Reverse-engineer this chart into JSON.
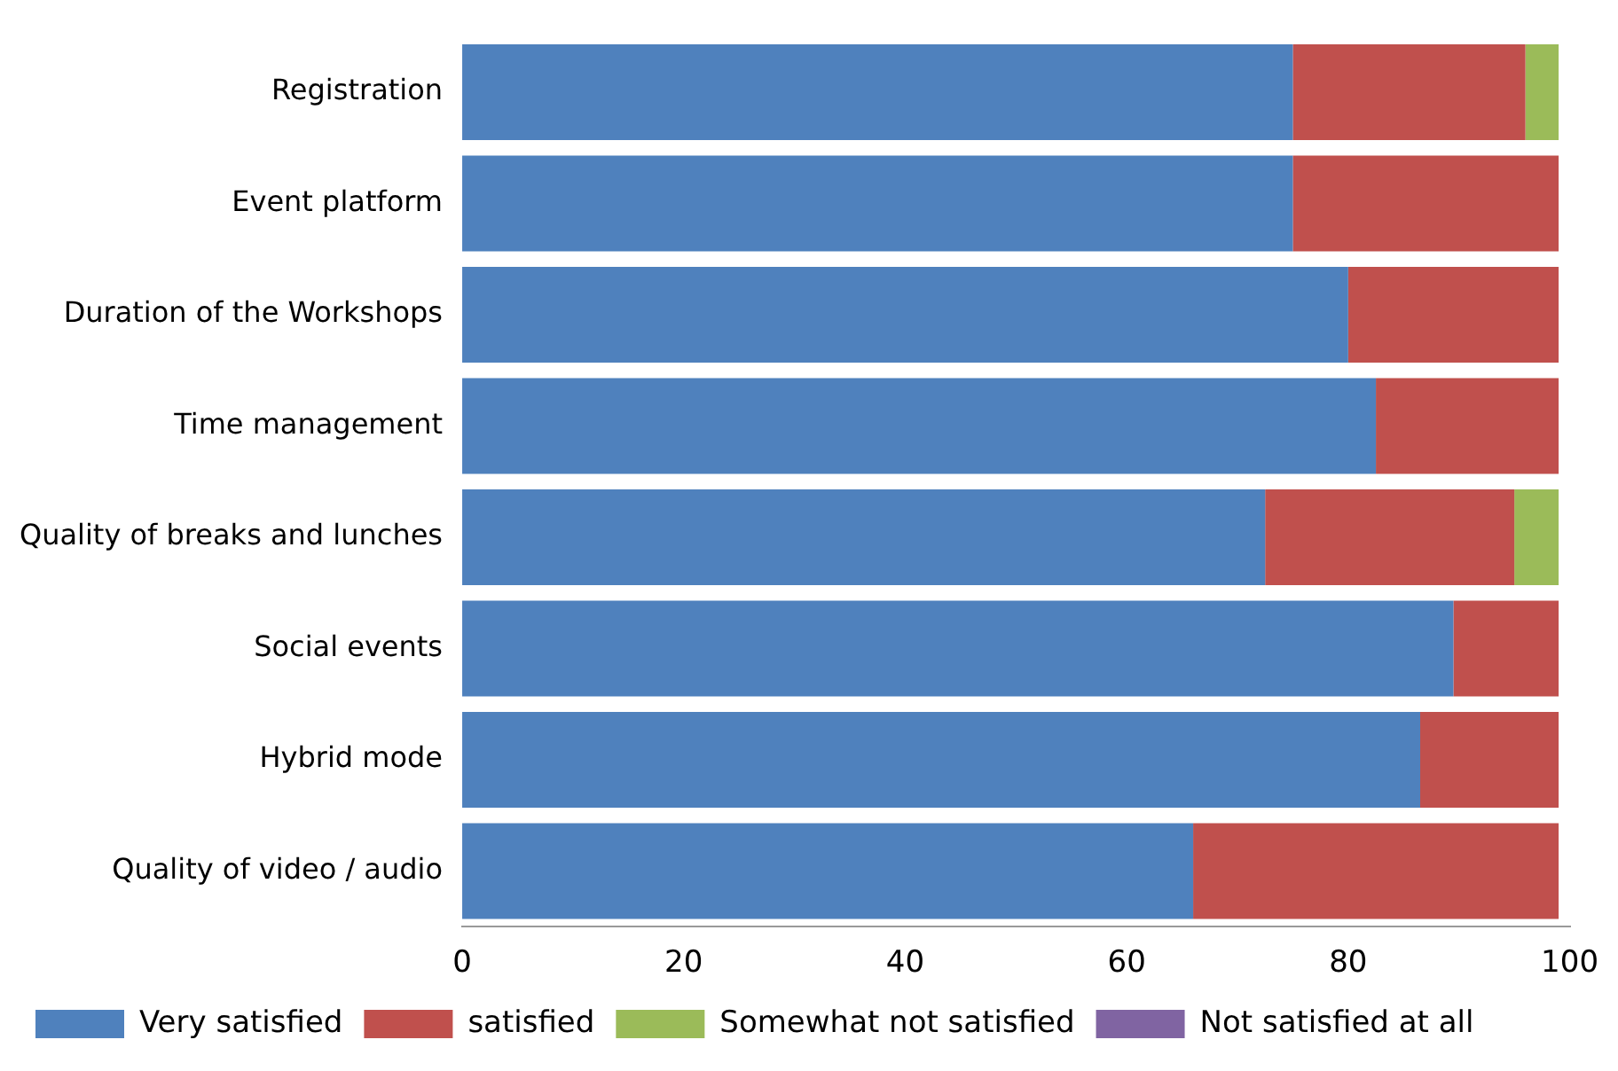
{
  "chart_data": {
    "type": "bar",
    "orientation": "horizontal",
    "stacked": true,
    "categories": [
      "Registration",
      "Event platform",
      "Duration of the Workshops",
      "Time management",
      "Quality of breaks and lunches",
      "Social events",
      "Hybrid mode",
      "Quality of video / audio"
    ],
    "series": [
      {
        "name": "Very satisfied",
        "color": "#4f81bd",
        "values": [
          75,
          75,
          80,
          82.5,
          72.5,
          89.5,
          86.5,
          66
        ]
      },
      {
        "name": "satisfied",
        "color": "#c0504d",
        "values": [
          21,
          24,
          19,
          16.5,
          22.5,
          9.5,
          12.5,
          33
        ]
      },
      {
        "name": "Somewhat not satisfied",
        "color": "#9bbb59",
        "values": [
          3,
          null,
          null,
          null,
          4,
          null,
          null,
          null
        ]
      },
      {
        "name": "Not satisfied at all",
        "color": "#8064a2",
        "values": [
          null,
          null,
          null,
          null,
          null,
          null,
          null,
          null
        ]
      }
    ],
    "xlim": [
      0,
      100
    ],
    "xticks": [
      0,
      20,
      40,
      60,
      80,
      100
    ],
    "grid": false,
    "legend": "bottom"
  }
}
